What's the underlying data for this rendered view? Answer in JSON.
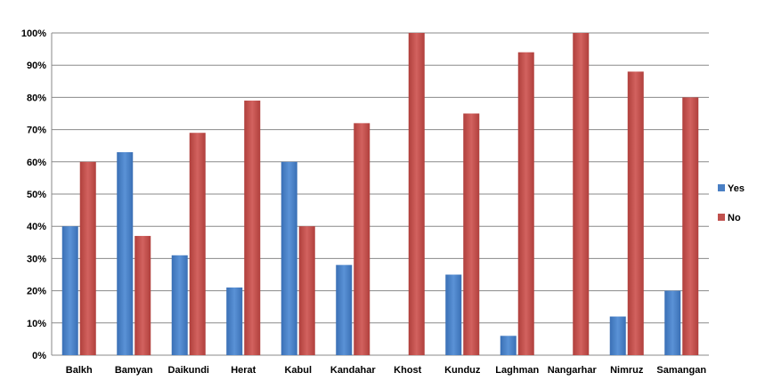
{
  "chart_data": {
    "type": "bar",
    "categories": [
      "Balkh",
      "Bamyan",
      "Daikundi",
      "Herat",
      "Kabul",
      "Kandahar",
      "Khost",
      "Kunduz",
      "Laghman",
      "Nangarhar",
      "Nimruz",
      "Samangan"
    ],
    "series": [
      {
        "name": "Yes",
        "color": "#4a7fc4",
        "values": [
          40,
          63,
          31,
          21,
          60,
          28,
          0,
          25,
          6,
          0,
          12,
          20
        ]
      },
      {
        "name": "No",
        "color": "#c0504d",
        "values": [
          60,
          37,
          69,
          79,
          40,
          72,
          100,
          75,
          94,
          100,
          88,
          80
        ]
      }
    ],
    "ylim": [
      0,
      100
    ],
    "yticks": [
      "0%",
      "10%",
      "20%",
      "30%",
      "40%",
      "50%",
      "60%",
      "70%",
      "80%",
      "90%",
      "100%"
    ],
    "grid": true,
    "legend_position": "right"
  }
}
